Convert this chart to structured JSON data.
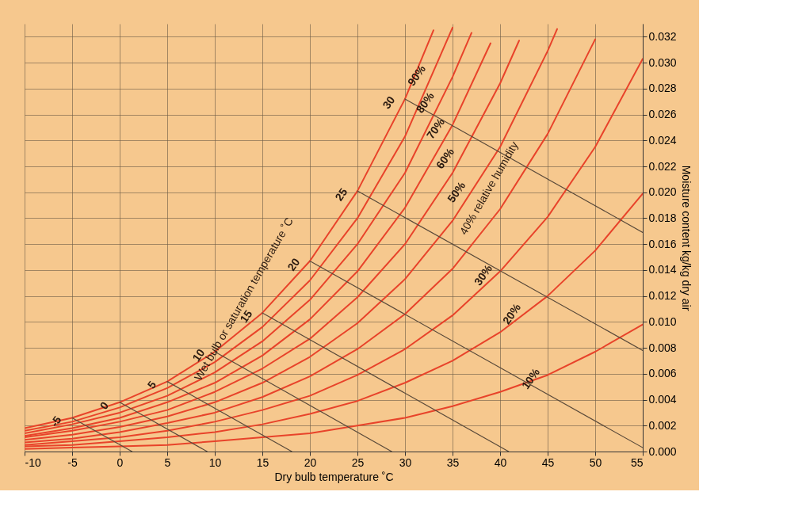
{
  "chart_data": {
    "type": "line",
    "xlabel": "Dry bulb temperature ˚C",
    "ylabel": "Moisture content kg/kg dry air",
    "xlim": [
      -10,
      55
    ],
    "xticks": [
      -10,
      -5,
      0,
      5,
      10,
      15,
      20,
      25,
      30,
      35,
      40,
      45,
      50,
      55
    ],
    "ylim": [
      0,
      0.033
    ],
    "yticks": [
      {
        "value": 0,
        "label": "0.000"
      },
      0.002,
      0.004,
      0.006,
      0.008,
      {
        "value": 0.01,
        "label": "0.010"
      },
      0.012,
      0.014,
      0.016,
      0.018,
      {
        "value": 0.02,
        "label": "0.020"
      },
      0.022,
      0.024,
      0.026,
      0.028,
      {
        "value": 0.03,
        "label": "0.030"
      },
      0.032
    ],
    "grid": true,
    "series": [
      {
        "color": "#e8432a",
        "x": [
          -10,
          -5,
          0,
          5,
          10,
          15,
          20,
          25,
          30,
          33
        ],
        "values": [
          0.0018,
          0.0026,
          0.0038,
          0.0054,
          0.0077,
          0.0107,
          0.0147,
          0.0201,
          0.0272,
          0.0325
        ]
      },
      {
        "color": "#e8432a",
        "x": [
          -10,
          -5,
          0,
          5,
          10,
          15,
          20,
          25,
          30,
          35
        ],
        "values": [
          0.0016,
          0.0023,
          0.0034,
          0.0049,
          0.0069,
          0.0096,
          0.0132,
          0.018,
          0.0243,
          0.0327
        ]
      },
      {
        "color": "#e8432a",
        "x": [
          -10,
          -5,
          0,
          5,
          10,
          15,
          20,
          25,
          30,
          35,
          37
        ],
        "values": [
          0.0014,
          0.0021,
          0.003,
          0.0043,
          0.0061,
          0.0085,
          0.0117,
          0.016,
          0.0215,
          0.0289,
          0.0323
        ]
      },
      {
        "color": "#e8432a",
        "x": [
          -10,
          -5,
          0,
          5,
          10,
          15,
          20,
          25,
          30,
          35,
          39
        ],
        "values": [
          0.0012,
          0.0018,
          0.0026,
          0.0038,
          0.0053,
          0.0074,
          0.0102,
          0.0139,
          0.0188,
          0.0252,
          0.0315
        ]
      },
      {
        "color": "#e8432a",
        "x": [
          -10,
          -5,
          0,
          5,
          10,
          15,
          20,
          25,
          30,
          35,
          40,
          42
        ],
        "values": [
          0.0011,
          0.0016,
          0.0023,
          0.0032,
          0.0046,
          0.0064,
          0.0087,
          0.0119,
          0.016,
          0.0215,
          0.0284,
          0.0317
        ]
      },
      {
        "color": "#e8432a",
        "x": [
          -10,
          -5,
          0,
          5,
          10,
          15,
          20,
          25,
          30,
          35,
          40,
          45,
          46
        ],
        "values": [
          0.0009,
          0.0013,
          0.0019,
          0.0027,
          0.0038,
          0.0053,
          0.0073,
          0.0099,
          0.0133,
          0.0178,
          0.0235,
          0.0309,
          0.0326
        ]
      },
      {
        "color": "#e8432a",
        "x": [
          -10,
          -5,
          0,
          5,
          10,
          15,
          20,
          25,
          30,
          35,
          40,
          45,
          50
        ],
        "values": [
          0.0007,
          0.001,
          0.0015,
          0.0022,
          0.003,
          0.0042,
          0.0058,
          0.0079,
          0.0106,
          0.0141,
          0.0187,
          0.0245,
          0.0318
        ]
      },
      {
        "color": "#e8432a",
        "x": [
          -10,
          -5,
          0,
          5,
          10,
          15,
          20,
          25,
          30,
          35,
          40,
          45,
          50,
          55
        ],
        "values": [
          0.0005,
          0.0008,
          0.0011,
          0.0016,
          0.0023,
          0.0032,
          0.0043,
          0.0059,
          0.0079,
          0.0105,
          0.0139,
          0.0181,
          0.0235,
          0.0303
        ]
      },
      {
        "color": "#e8432a",
        "x": [
          -10,
          -5,
          0,
          5,
          10,
          15,
          20,
          25,
          30,
          35,
          40,
          45,
          50,
          55
        ],
        "values": [
          0.0004,
          0.0005,
          0.0008,
          0.0011,
          0.0015,
          0.0021,
          0.0029,
          0.0039,
          0.0053,
          0.007,
          0.0092,
          0.012,
          0.0155,
          0.0199
        ]
      },
      {
        "color": "#e8432a",
        "x": [
          -10,
          -5,
          0,
          5,
          10,
          15,
          20,
          25,
          30,
          35,
          40,
          45,
          50,
          55
        ],
        "values": [
          0.0002,
          0.0003,
          0.0004,
          0.0005,
          0.0008,
          0.0011,
          0.0014,
          0.002,
          0.0026,
          0.0035,
          0.0046,
          0.0059,
          0.0077,
          0.0098
        ]
      },
      {
        "color": "#5a4a3a",
        "x": [
          -5,
          1.3
        ],
        "values": [
          0.0026,
          0
        ]
      },
      {
        "color": "#5a4a3a",
        "x": [
          0,
          9.2
        ],
        "values": [
          0.0038,
          0
        ]
      },
      {
        "color": "#5a4a3a",
        "x": [
          5,
          18.1
        ],
        "values": [
          0.0054,
          0
        ]
      },
      {
        "color": "#5a4a3a",
        "x": [
          10,
          28.6
        ],
        "values": [
          0.0077,
          0
        ]
      },
      {
        "color": "#5a4a3a",
        "x": [
          15,
          40.9
        ],
        "values": [
          0.0107,
          0
        ]
      },
      {
        "color": "#5a4a3a",
        "x": [
          20,
          55
        ],
        "values": [
          0.0147,
          0.0003
        ]
      },
      {
        "color": "#5a4a3a",
        "x": [
          25,
          55
        ],
        "values": [
          0.0201,
          0.0078
        ]
      },
      {
        "color": "#5a4a3a",
        "x": [
          30,
          55
        ],
        "values": [
          0.0272,
          0.0169
        ]
      }
    ],
    "annotations": [
      {
        "text": "90%",
        "x": 33,
        "y": 0.0293
      },
      {
        "text": "80%",
        "x": 33.9,
        "y": 0.0272
      },
      {
        "text": "70%",
        "x": 35,
        "y": 0.0252
      },
      {
        "text": "60%",
        "x": 36,
        "y": 0.0229
      },
      {
        "text": "50%",
        "x": 37.2,
        "y": 0.0203
      },
      {
        "text": "40% relative humidity",
        "x": 42,
        "y": 0.021
      },
      {
        "text": "30%",
        "x": 40,
        "y": 0.0139
      },
      {
        "text": "20%",
        "x": 43,
        "y": 0.0109
      },
      {
        "text": "10%",
        "x": 45,
        "y": 0.0059
      },
      {
        "text": "-5",
        "x": -5,
        "y": 0.0026
      },
      {
        "text": "0",
        "x": 0,
        "y": 0.0038
      },
      {
        "text": "5",
        "x": 5,
        "y": 0.0054
      },
      {
        "text": "10",
        "x": 10,
        "y": 0.0077
      },
      {
        "text": "15",
        "x": 15,
        "y": 0.0107
      },
      {
        "text": "20",
        "x": 20,
        "y": 0.0147
      },
      {
        "text": "25",
        "x": 25,
        "y": 0.0201
      },
      {
        "text": "30",
        "x": 30,
        "y": 0.0272
      },
      {
        "text": "Wet bulb or saturation temperature ˚C",
        "x": 17.5,
        "y": 0.0127
      }
    ]
  }
}
